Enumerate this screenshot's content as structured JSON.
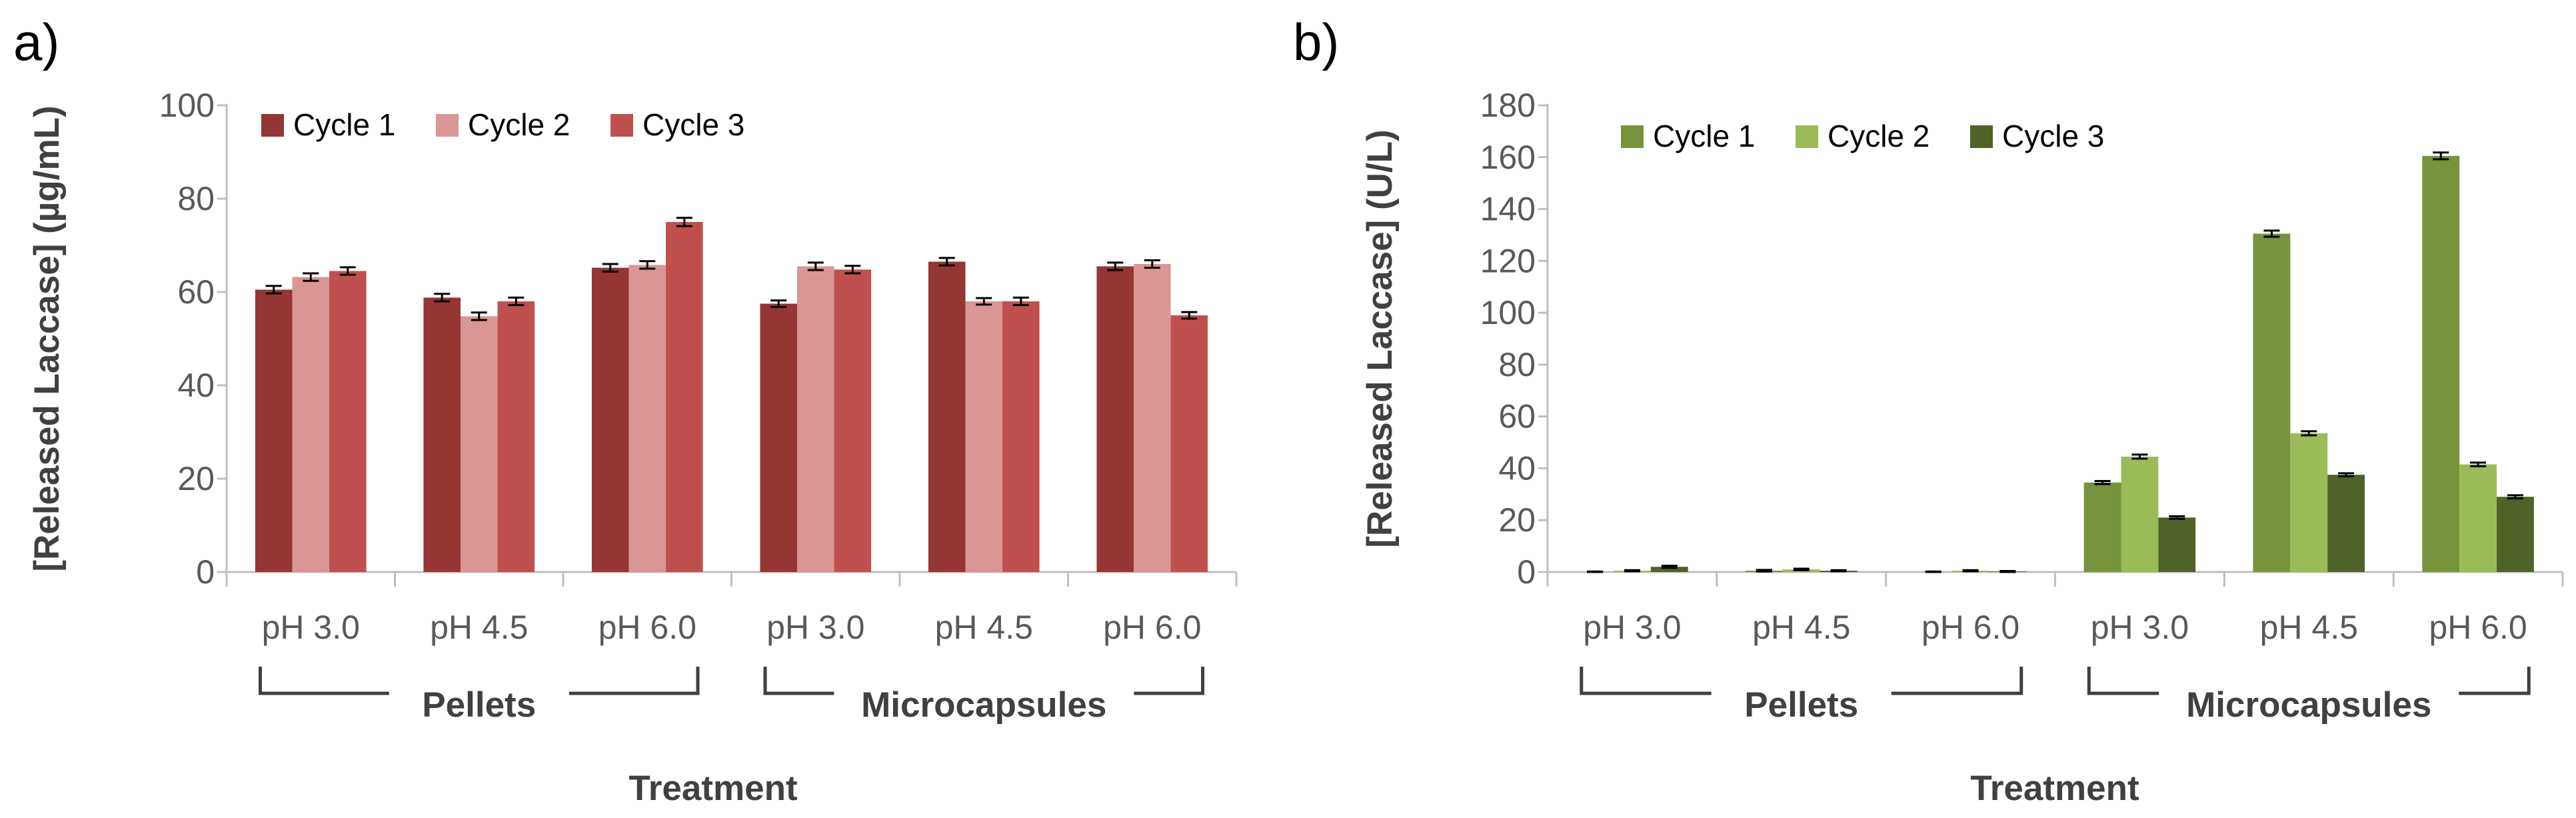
{
  "chart_data": [
    {
      "panel": "a)",
      "type": "bar",
      "categories": [
        "pH 3.0",
        "pH 4.5",
        "pH 6.0",
        "pH 3.0",
        "pH 4.5",
        "pH 6.0"
      ],
      "groups": [
        {
          "label": "Pellets",
          "span": [
            0,
            2
          ]
        },
        {
          "label": "Microcapsules",
          "span": [
            3,
            5
          ]
        }
      ],
      "series": [
        {
          "name": "Cycle 1",
          "color": "#943634",
          "values": [
            60.5,
            58.8,
            65.2,
            57.5,
            66.5,
            65.5
          ],
          "errors": [
            0.8,
            0.8,
            0.8,
            0.7,
            0.8,
            0.8
          ]
        },
        {
          "name": "Cycle 2",
          "color": "#DA9694",
          "values": [
            63.2,
            54.8,
            65.8,
            65.5,
            58.0,
            66.0
          ],
          "errors": [
            0.8,
            0.8,
            0.8,
            0.8,
            0.7,
            0.8
          ]
        },
        {
          "name": "Cycle 3",
          "color": "#C0504D",
          "values": [
            64.5,
            58.0,
            75.0,
            64.8,
            58.0,
            55.0
          ],
          "errors": [
            0.8,
            0.8,
            0.9,
            0.8,
            0.8,
            0.7
          ]
        }
      ],
      "xlabel": "Treatment",
      "ylabel": "[Released Laccase] (µg/mL)",
      "ylim": [
        0,
        100
      ],
      "yticks": [
        0,
        20,
        40,
        60,
        80,
        100
      ],
      "legend_position": "top-left"
    },
    {
      "panel": "b)",
      "type": "bar",
      "categories": [
        "pH 3.0",
        "pH 4.5",
        "pH 6.0",
        "pH 3.0",
        "pH 4.5",
        "pH 6.0"
      ],
      "groups": [
        {
          "label": "Pellets",
          "span": [
            0,
            2
          ]
        },
        {
          "label": "Microcapsules",
          "span": [
            3,
            5
          ]
        }
      ],
      "series": [
        {
          "name": "Cycle 1",
          "color": "#77933C",
          "values": [
            0.0,
            0.5,
            0.0,
            34.5,
            130.5,
            160.5
          ],
          "errors": [
            0.2,
            0.3,
            0.2,
            0.6,
            1.2,
            1.3
          ]
        },
        {
          "name": "Cycle 2",
          "color": "#9BBB59",
          "values": [
            0.5,
            1.0,
            0.5,
            44.5,
            53.5,
            41.5
          ],
          "errors": [
            0.2,
            0.3,
            0.2,
            0.8,
            0.8,
            0.7
          ]
        },
        {
          "name": "Cycle 3",
          "color": "#4F6228",
          "values": [
            2.0,
            0.5,
            0.2,
            21.0,
            37.5,
            29.0
          ],
          "errors": [
            0.4,
            0.2,
            0.2,
            0.5,
            0.6,
            0.6
          ]
        }
      ],
      "xlabel": "Treatment",
      "ylabel": "[Released Laccase] (U/L)",
      "ylim": [
        0,
        180
      ],
      "yticks": [
        0,
        20,
        40,
        60,
        80,
        100,
        120,
        140,
        160,
        180
      ],
      "legend_position": "top-left"
    }
  ]
}
